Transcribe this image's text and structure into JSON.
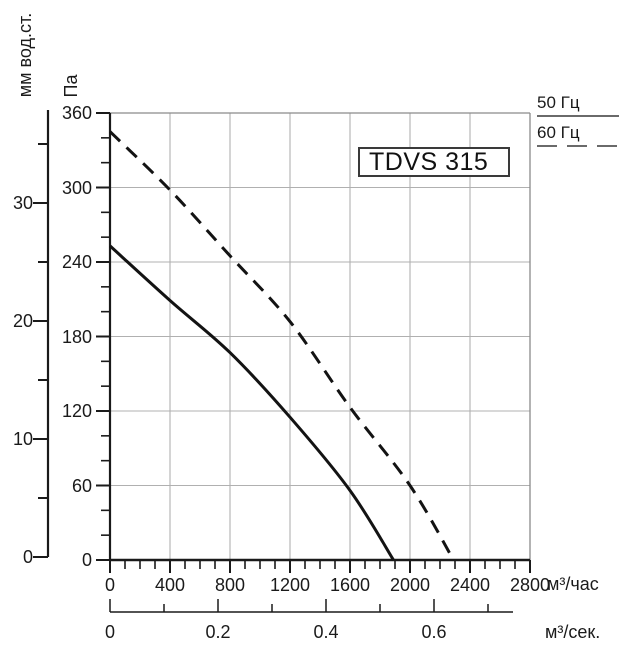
{
  "title_box": {
    "label": "TDVS 315"
  },
  "legend": {
    "items": [
      {
        "label": "50 Гц",
        "style": "solid"
      },
      {
        "label": "60 Гц",
        "style": "dashed"
      }
    ]
  },
  "axes": {
    "pressure_pa": {
      "unit": "Па",
      "major_ticks": [
        0,
        60,
        120,
        180,
        240,
        300,
        360
      ],
      "minor_step": 20,
      "min": 0,
      "max": 360
    },
    "pressure_mm": {
      "unit": "мм вод.ст.",
      "major_ticks": [
        0,
        10,
        20,
        30
      ],
      "minor_step": 5,
      "min": 0,
      "max": 35
    },
    "flow_m3h": {
      "unit": "м³/час",
      "major_ticks": [
        0,
        400,
        800,
        1200,
        1600,
        2000,
        2400,
        2800
      ],
      "minor_step": 100,
      "min": 0,
      "max": 2800
    },
    "flow_m3s": {
      "unit": "м³/сек.",
      "major_ticks": [
        0,
        0.2,
        0.4,
        0.6
      ],
      "minor_step": 0.1,
      "min": 0,
      "max": 0.7
    }
  },
  "chart_data": {
    "type": "line",
    "title": "TDVS 315",
    "xlabel": "м³/час",
    "ylabel": "Па",
    "xlim": [
      0,
      2800
    ],
    "ylim": [
      0,
      360
    ],
    "grid": true,
    "legend_position": "top-right-outside",
    "series": [
      {
        "name": "50 Гц",
        "line_style": "solid",
        "points": [
          [
            0,
            253
          ],
          [
            400,
            209
          ],
          [
            800,
            167
          ],
          [
            1200,
            115
          ],
          [
            1600,
            56
          ],
          [
            1890,
            0
          ]
        ]
      },
      {
        "name": "60 Гц",
        "line_style": "dashed",
        "points": [
          [
            0,
            345
          ],
          [
            400,
            298
          ],
          [
            800,
            245
          ],
          [
            1200,
            192
          ],
          [
            1600,
            123
          ],
          [
            2000,
            60
          ],
          [
            2290,
            0
          ]
        ]
      }
    ]
  },
  "colors": {
    "curve": "#131313",
    "grid": "#b0b0b0",
    "border": "#8a8a8a",
    "axis": "#1a1a1a",
    "legend_line": "#6a6a6a",
    "text": "#1a1a1a",
    "background": "#ffffff"
  }
}
